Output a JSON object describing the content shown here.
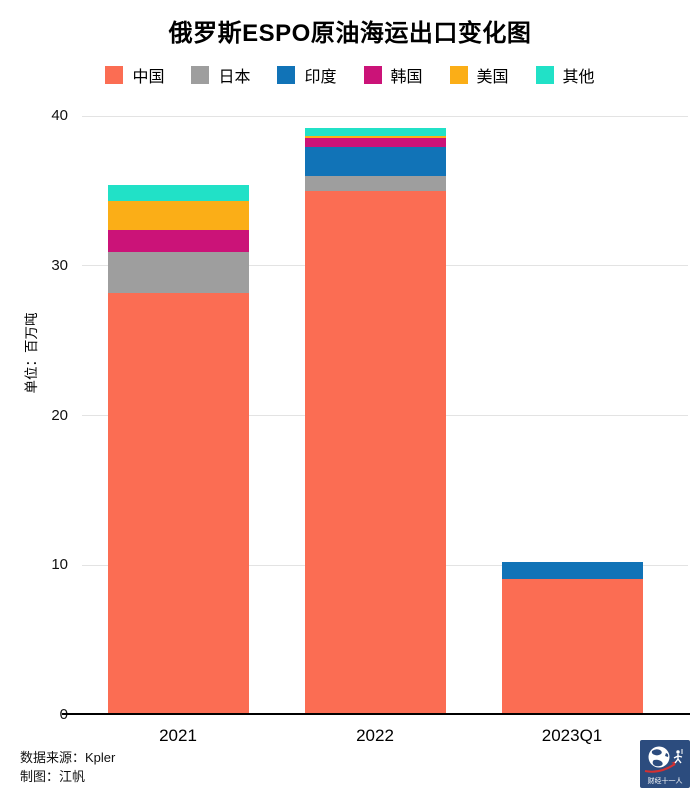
{
  "title": "俄罗斯ESPO原油海运出口变化图",
  "legend": [
    {
      "id": "china",
      "label": "中国",
      "color": "#fb6d53"
    },
    {
      "id": "japan",
      "label": "日本",
      "color": "#9e9e9e"
    },
    {
      "id": "india",
      "label": "印度",
      "color": "#1173b7"
    },
    {
      "id": "korea",
      "label": "韩国",
      "color": "#cb1378"
    },
    {
      "id": "usa",
      "label": "美国",
      "color": "#fbae17"
    },
    {
      "id": "others",
      "label": "其他",
      "color": "#21e1c7"
    }
  ],
  "y_axis": {
    "title": "单位：百万吨",
    "ticks": [
      40,
      30,
      20,
      10,
      0
    ]
  },
  "x_axis": {
    "categories": [
      "2021",
      "2022",
      "2023Q1"
    ]
  },
  "chart_data": {
    "type": "bar",
    "stacked": true,
    "title": "俄罗斯ESPO原油海运出口变化图",
    "ylabel": "单位：百万吨",
    "ylim": [
      0,
      40
    ],
    "grid": "horizontal",
    "legend_position": "top",
    "categories": [
      "2021",
      "2022",
      "2023Q1"
    ],
    "series": [
      {
        "id": "china",
        "name": "中国",
        "color": "#fb6d53",
        "values": [
          28.2,
          35.0,
          9.1
        ]
      },
      {
        "id": "japan",
        "name": "日本",
        "color": "#9e9e9e",
        "values": [
          2.7,
          1.0,
          0
        ]
      },
      {
        "id": "india",
        "name": "印度",
        "color": "#1173b7",
        "values": [
          0,
          1.9,
          1.1
        ]
      },
      {
        "id": "korea",
        "name": "韩国",
        "color": "#cb1378",
        "values": [
          1.5,
          0.6,
          0
        ]
      },
      {
        "id": "usa",
        "name": "美国",
        "color": "#fbae17",
        "values": [
          1.9,
          0.2,
          0
        ]
      },
      {
        "id": "others",
        "name": "其他",
        "color": "#21e1c7",
        "values": [
          1.1,
          0.5,
          0
        ]
      }
    ],
    "totals": [
      35.4,
      39.2,
      10.2
    ]
  },
  "footer": {
    "source": "数据来源：Kpler",
    "credit": "制图：江帆"
  },
  "logo": {
    "text": "财经十一人",
    "bg_color": "#2c4c7e"
  }
}
